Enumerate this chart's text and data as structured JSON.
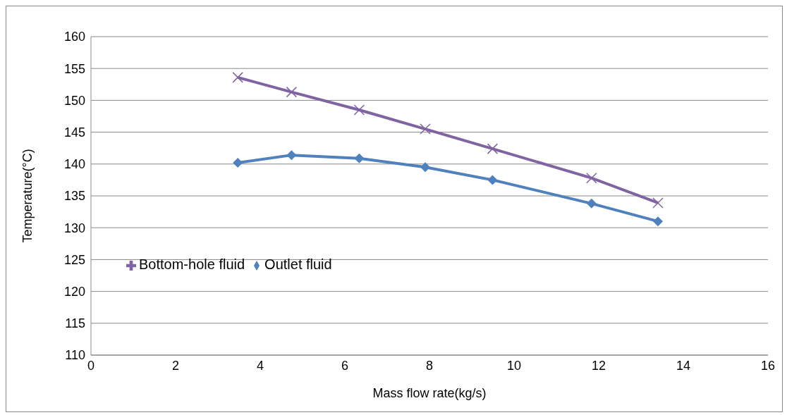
{
  "chart_data": {
    "type": "line",
    "xlabel": "Mass flow rate(kg/s)",
    "ylabel": "Temperature(°C)",
    "xlim": [
      0,
      16
    ],
    "xticks": [
      0,
      2,
      4,
      6,
      8,
      10,
      12,
      14,
      16
    ],
    "ylim": [
      110,
      160
    ],
    "yticks": [
      110,
      115,
      120,
      125,
      130,
      135,
      140,
      145,
      150,
      155,
      160
    ],
    "grid": "y",
    "legend": "left",
    "series": [
      {
        "name": "Bottom-hole fluid",
        "color": "#8064a2",
        "marker": "cross",
        "x": [
          3.47,
          4.74,
          6.34,
          7.9,
          9.49,
          11.83,
          13.4
        ],
        "values": [
          153.6,
          151.3,
          148.5,
          145.5,
          142.4,
          137.8,
          133.9
        ]
      },
      {
        "name": "Outlet fluid",
        "color": "#4f81bd",
        "marker": "diamond",
        "x": [
          3.47,
          4.74,
          6.34,
          7.9,
          9.49,
          11.83,
          13.4
        ],
        "values": [
          140.2,
          141.4,
          140.9,
          139.5,
          137.5,
          133.8,
          131.0
        ]
      }
    ]
  }
}
